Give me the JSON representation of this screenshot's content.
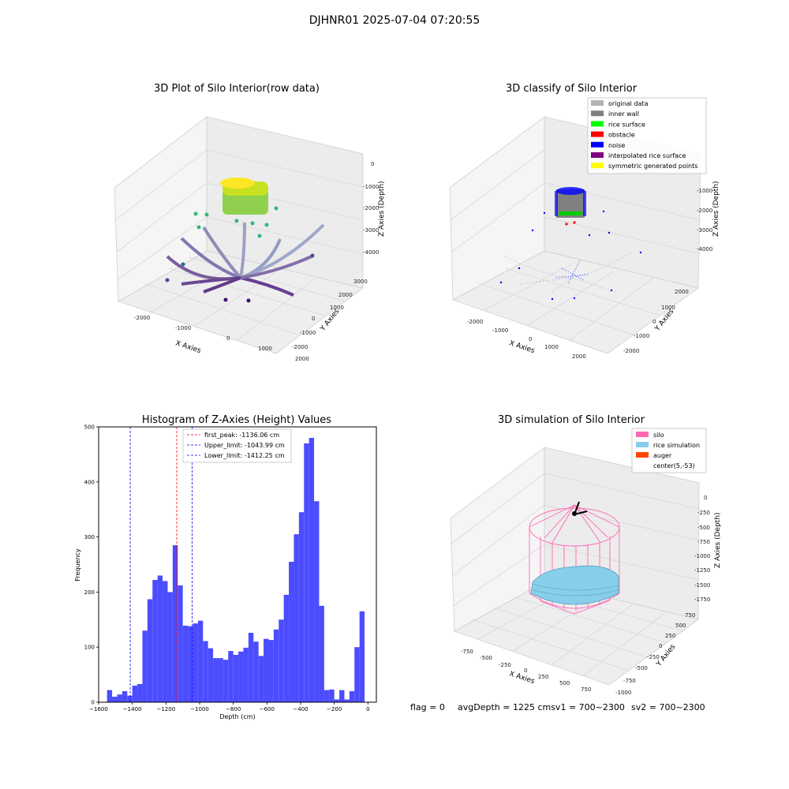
{
  "suptitle": "DJHNR01 2025-07-04 07:20:55",
  "footer": {
    "flag": "flag = 0",
    "depth_sv1": "avgDepth = 1225 cmsv1 = 700~2300",
    "sv2": "sv2 = 700~2300"
  },
  "chart_data": [
    {
      "type": "scatter",
      "title": "3D Plot of Silo Interior(row data)",
      "xlabel": "X Axies",
      "ylabel": "Y Axies",
      "zlabel": "Z Axies (Depth)",
      "x_ticks": [
        "-2000",
        "-1000",
        "0",
        "1000",
        "2000"
      ],
      "y_ticks": [
        "-2000",
        "-1000",
        "0",
        "1000",
        "2000",
        "3000"
      ],
      "z_ticks": [
        "0",
        "-1000",
        "-2000",
        "-3000",
        "-4000"
      ],
      "colormap": [
        "#3b0f70",
        "#31688e",
        "#35b779",
        "#90d743",
        "#fde725"
      ],
      "note": "rice surface cluster near top center with curved scan arcs below"
    },
    {
      "type": "scatter",
      "title": "3D classify of Silo Interior",
      "xlabel": "X Axies",
      "ylabel": "Y Axies",
      "zlabel": "Z Axies (Depth)",
      "x_ticks": [
        "-2000",
        "-1000",
        "0",
        "1000",
        "2000"
      ],
      "y_ticks": [
        "-2000",
        "-1000",
        "0",
        "1000",
        "2000"
      ],
      "z_ticks": [
        "-1000",
        "-2000",
        "-3000",
        "-4000"
      ],
      "legend": [
        {
          "label": "original data",
          "color": "#b3b3b3"
        },
        {
          "label": "inner wall",
          "color": "#808080"
        },
        {
          "label": "rice surface",
          "color": "#00ff00"
        },
        {
          "label": "obstacle",
          "color": "#ff0000"
        },
        {
          "label": "noise",
          "color": "#0000ff"
        },
        {
          "label": "interpolated rice surface",
          "color": "#800080"
        },
        {
          "label": "symmetric generated points",
          "color": "#ffff00"
        }
      ],
      "legend_position": "top-right"
    },
    {
      "type": "bar",
      "title": "Histogram of Z-Axies (Height) Values",
      "xlabel": "Depth (cm)",
      "ylabel": "Frequency",
      "xlim": [
        -1600,
        50
      ],
      "ylim": [
        0,
        500
      ],
      "x_ticks": [
        -1600,
        -1400,
        -1200,
        -1000,
        -800,
        -600,
        -400,
        -200,
        0
      ],
      "y_ticks": [
        0,
        100,
        200,
        300,
        400,
        500
      ],
      "bin_start": -1550,
      "bin_width": 30,
      "values": [
        22,
        10,
        14,
        20,
        12,
        30,
        33,
        130,
        187,
        222,
        230,
        220,
        200,
        285,
        212,
        139,
        138,
        143,
        148,
        111,
        98,
        80,
        80,
        77,
        93,
        86,
        92,
        99,
        126,
        110,
        84,
        115,
        113,
        132,
        150,
        195,
        255,
        305,
        345,
        470,
        480,
        365,
        175,
        22,
        23,
        5,
        22,
        5,
        20,
        100,
        165
      ],
      "bar_color": "#4c4cff",
      "vlines": [
        {
          "label": "first_peak: -1136.06 cm",
          "x": -1136.06,
          "color": "#ff0000"
        },
        {
          "label": "Upper_limit: -1043.99 cm",
          "x": -1043.99,
          "color": "#0000ff"
        },
        {
          "label": "Lower_limit: -1412.25 cm",
          "x": -1412.25,
          "color": "#0000ff"
        }
      ],
      "legend_position": "top-center"
    },
    {
      "type": "scatter",
      "title": "3D simulation of Silo Interior",
      "xlabel": "X Axies",
      "ylabel": "Y Axies",
      "zlabel": "Z Axies (Depth)",
      "x_ticks": [
        "-750",
        "-500",
        "-250",
        "0",
        "250",
        "500",
        "750"
      ],
      "y_ticks": [
        "-1000",
        "-750",
        "-500",
        "-250",
        "0",
        "250",
        "500",
        "750"
      ],
      "z_ticks": [
        "0",
        "-250",
        "-500",
        "-750",
        "-1000",
        "-1250",
        "-1500",
        "-1750"
      ],
      "legend": [
        {
          "label": "silo",
          "color": "#ff69b4"
        },
        {
          "label": "rice simulation",
          "color": "#87ceeb"
        },
        {
          "label": "auger",
          "color": "#ff4500"
        },
        {
          "label": "center(5,-53)",
          "color": "#ffffff"
        }
      ],
      "legend_position": "top-right"
    }
  ]
}
